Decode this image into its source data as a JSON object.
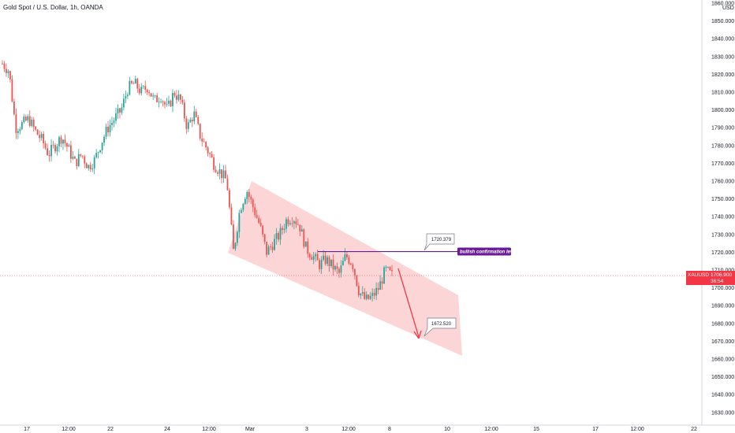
{
  "header": {
    "title": "Gold Spot / U.S. Dollar, 1h, OANDA"
  },
  "chart_data": {
    "type": "candlestick",
    "title": "Gold Spot / U.S. Dollar, 1h, OANDA",
    "currency": "USD",
    "ylim": [
      1625,
      1862
    ],
    "y_ticks": [
      "1860.000",
      "1850.000",
      "1840.000",
      "1830.000",
      "1820.000",
      "1810.000",
      "1800.000",
      "1790.000",
      "1780.000",
      "1770.000",
      "1760.000",
      "1750.000",
      "1740.000",
      "1730.000",
      "1720.000",
      "1710.000",
      "1700.000",
      "1690.000",
      "1680.000",
      "1670.000",
      "1660.000",
      "1650.000",
      "1640.000",
      "1630.000"
    ],
    "x_ticks": [
      "17",
      "12:00",
      "22",
      "24",
      "12:00",
      "Mar",
      "3",
      "12:00",
      "8",
      "10",
      "12:00",
      "15",
      "17",
      "12:00",
      "22"
    ],
    "close_path": [
      1826,
      1822,
      1790,
      1792,
      1795,
      1788,
      1783,
      1775,
      1780,
      1785,
      1778,
      1770,
      1775,
      1768,
      1772,
      1782,
      1790,
      1795,
      1800,
      1812,
      1815,
      1810,
      1813,
      1805,
      1808,
      1800,
      1810,
      1805,
      1790,
      1798,
      1785,
      1778,
      1770,
      1765,
      1760,
      1720,
      1745,
      1755,
      1745,
      1735,
      1720,
      1725,
      1730,
      1738,
      1740,
      1735,
      1722,
      1718,
      1713,
      1716,
      1712,
      1708,
      1718,
      1714,
      1698,
      1693,
      1695,
      1700,
      1710,
      1707
    ],
    "channel_color": "#f8a5a5",
    "annotations": {
      "bullish_level_label": "bullish confirmation level",
      "bullish_level_value": 1720.379,
      "bullish_callout": "1720.379",
      "target_callout": "1672.520",
      "target_value": 1672.52
    },
    "current_price": {
      "symbol": "XAUUSD",
      "value": "1706.900",
      "countdown": "36:54",
      "color": "#f23645"
    },
    "level_line_color": "#6a1b9a",
    "up_color": "#26a69a",
    "down_color": "#ef5350"
  }
}
